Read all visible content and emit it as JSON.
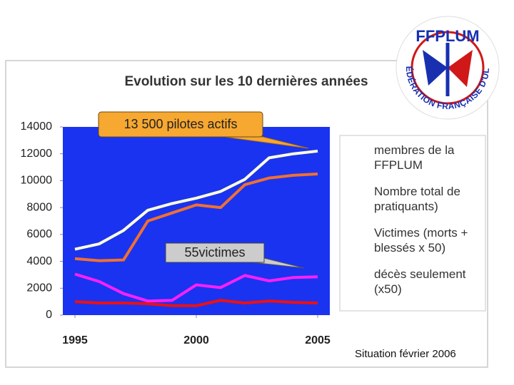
{
  "logo": {
    "top": "FFPLUM",
    "ring": "FÉDÉRATION FRANÇAISE D'ULM"
  },
  "footer": "Situation février 2006",
  "chart_data": {
    "type": "line",
    "title": "Evolution sur les 10 dernières années",
    "x": [
      1995,
      1996,
      1997,
      1998,
      1999,
      2000,
      2001,
      2002,
      2003,
      2004,
      2005
    ],
    "xlim": [
      1994.5,
      2005.5
    ],
    "xticks": [
      1995,
      2000,
      2005
    ],
    "ylim": [
      0,
      14000
    ],
    "yticks": [
      0,
      2000,
      4000,
      6000,
      8000,
      10000,
      12000,
      14000
    ],
    "grid": false,
    "plot_background": "#1a33f0",
    "legend": "right",
    "annotations": [
      "13 500 pilotes actifs",
      "55victimes"
    ],
    "series": [
      {
        "name": "membres de la FFPLUM",
        "color": "#f07030",
        "values": [
          4200,
          4050,
          4100,
          7000,
          7600,
          8200,
          8000,
          9700,
          10200,
          10400,
          10500
        ]
      },
      {
        "name": "Nombre total de pratiquants)",
        "color": "#ffffd8",
        "values": [
          4900,
          5300,
          6300,
          7800,
          8300,
          8700,
          9200,
          10100,
          11700,
          12000,
          12200
        ]
      },
      {
        "name": "Victimes (morts + blessés x 50)",
        "color": "#ff20ff",
        "values": [
          3050,
          2500,
          1600,
          1050,
          1100,
          2250,
          2050,
          2950,
          2550,
          2800,
          2850
        ]
      },
      {
        "name": "décès seulement (x50)",
        "color": "#ee1010",
        "values": [
          1000,
          900,
          900,
          850,
          700,
          700,
          1100,
          900,
          1050,
          950,
          900
        ]
      }
    ]
  }
}
